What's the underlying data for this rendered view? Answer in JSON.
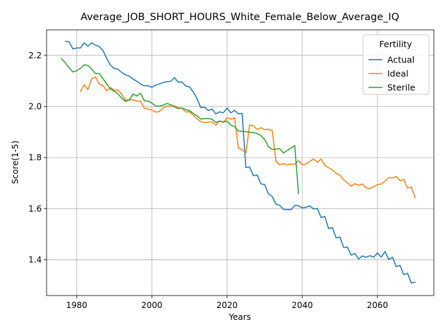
{
  "chart_data": {
    "type": "line",
    "title": "Average_JOB_SHORT_HOURS_White_Female_Below_Average_IQ",
    "xlabel": "Years",
    "ylabel": "Score(1-5)",
    "xlim": [
      1972,
      2075
    ],
    "ylim": [
      1.26,
      2.3
    ],
    "xticks": [
      1980,
      2000,
      2020,
      2040,
      2060
    ],
    "yticks": [
      1.4,
      1.6,
      1.8,
      2.0,
      2.2
    ],
    "ytick_labels": [
      "1.4",
      "1.6",
      "1.8",
      "2.0",
      "2.2"
    ],
    "grid": true,
    "legend": {
      "title": "Fertility",
      "placement": "top-right"
    },
    "series": [
      {
        "name": "Actual",
        "color": "#1f77b4",
        "x": [
          1977,
          1978,
          1979,
          1980,
          1981,
          1982,
          1983,
          1984,
          1985,
          1986,
          1987,
          1988,
          1989,
          1990,
          1991,
          1992,
          1993,
          1994,
          1995,
          1996,
          1997,
          1998,
          1999,
          2000,
          2001,
          2002,
          2003,
          2004,
          2005,
          2006,
          2007,
          2008,
          2009,
          2010,
          2011,
          2012,
          2013,
          2014,
          2015,
          2016,
          2017,
          2018,
          2019,
          2020,
          2021,
          2022,
          2023,
          2024,
          2025,
          2026,
          2027,
          2028,
          2029,
          2030,
          2031,
          2032,
          2033,
          2034,
          2035,
          2036,
          2037,
          2038,
          2039,
          2040,
          2041,
          2042,
          2043,
          2044,
          2045,
          2046,
          2047,
          2048,
          2049,
          2050,
          2051,
          2052,
          2053,
          2054,
          2055,
          2056,
          2057,
          2058,
          2059,
          2060,
          2061,
          2062,
          2063,
          2064,
          2065,
          2066,
          2067,
          2068,
          2069,
          2070
        ],
        "y": [
          2.255,
          2.253,
          2.225,
          2.229,
          2.229,
          2.249,
          2.236,
          2.249,
          2.24,
          2.235,
          2.219,
          2.188,
          2.161,
          2.149,
          2.146,
          2.133,
          2.124,
          2.119,
          2.107,
          2.099,
          2.088,
          2.081,
          2.081,
          2.075,
          2.084,
          2.088,
          2.094,
          2.097,
          2.098,
          2.113,
          2.095,
          2.096,
          2.08,
          2.077,
          2.057,
          2.031,
          1.996,
          1.997,
          1.984,
          1.99,
          1.971,
          1.979,
          1.975,
          1.994,
          1.975,
          1.985,
          1.971,
          1.973,
          1.761,
          1.763,
          1.729,
          1.732,
          1.697,
          1.694,
          1.658,
          1.648,
          1.618,
          1.613,
          1.597,
          1.596,
          1.596,
          1.613,
          1.611,
          1.603,
          1.605,
          1.611,
          1.599,
          1.601,
          1.565,
          1.57,
          1.522,
          1.526,
          1.486,
          1.489,
          1.448,
          1.45,
          1.418,
          1.424,
          1.403,
          1.415,
          1.41,
          1.416,
          1.41,
          1.427,
          1.41,
          1.432,
          1.401,
          1.41,
          1.373,
          1.378,
          1.342,
          1.347,
          1.309,
          1.312
        ]
      },
      {
        "name": "Ideal",
        "color": "#ff7f0e",
        "x": [
          1981,
          1982,
          1983,
          1984,
          1985,
          1986,
          1987,
          1988,
          1989,
          1990,
          1991,
          1992,
          1993,
          1994,
          1995,
          1996,
          1997,
          1998,
          1999,
          2000,
          2001,
          2002,
          2003,
          2004,
          2005,
          2006,
          2007,
          2008,
          2009,
          2010,
          2011,
          2012,
          2013,
          2014,
          2015,
          2016,
          2017,
          2018,
          2019,
          2020,
          2021,
          2022,
          2023,
          2024,
          2025,
          2026,
          2027,
          2028,
          2029,
          2030,
          2031,
          2032,
          2033,
          2034,
          2035,
          2036,
          2037,
          2038,
          2039,
          2040,
          2041,
          2042,
          2043,
          2044,
          2045,
          2046,
          2047,
          2048,
          2049,
          2050,
          2051,
          2052,
          2053,
          2054,
          2055,
          2056,
          2057,
          2058,
          2059,
          2060,
          2061,
          2062,
          2063,
          2064,
          2065,
          2066,
          2067,
          2068,
          2069,
          2070
        ],
        "y": [
          2.059,
          2.085,
          2.066,
          2.109,
          2.116,
          2.088,
          2.082,
          2.061,
          2.074,
          2.064,
          2.064,
          2.047,
          2.025,
          2.026,
          2.026,
          2.021,
          2.021,
          1.993,
          1.99,
          1.986,
          1.978,
          1.98,
          1.994,
          2.002,
          2.001,
          2.003,
          1.995,
          1.993,
          1.979,
          1.979,
          1.966,
          1.951,
          1.941,
          1.937,
          1.938,
          1.94,
          1.927,
          1.944,
          1.937,
          1.956,
          1.951,
          1.956,
          1.837,
          1.831,
          1.818,
          1.928,
          1.924,
          1.91,
          1.917,
          1.909,
          1.911,
          1.906,
          1.786,
          1.772,
          1.776,
          1.771,
          1.775,
          1.774,
          1.788,
          1.772,
          1.775,
          1.785,
          1.795,
          1.782,
          1.794,
          1.769,
          1.76,
          1.752,
          1.738,
          1.731,
          1.713,
          1.701,
          1.688,
          1.698,
          1.691,
          1.697,
          1.681,
          1.679,
          1.687,
          1.694,
          1.697,
          1.707,
          1.722,
          1.72,
          1.726,
          1.709,
          1.714,
          1.681,
          1.685,
          1.643
        ]
      },
      {
        "name": "Sterile",
        "color": "#2ca02c",
        "x": [
          1976,
          1977,
          1978,
          1979,
          1980,
          1981,
          1982,
          1983,
          1984,
          1985,
          1986,
          1987,
          1988,
          1989,
          1990,
          1991,
          1992,
          1993,
          1994,
          1995,
          1996,
          1997,
          1998,
          1999,
          2000,
          2001,
          2002,
          2003,
          2004,
          2005,
          2006,
          2007,
          2008,
          2009,
          2010,
          2011,
          2012,
          2013,
          2014,
          2015,
          2016,
          2017,
          2018,
          2019,
          2020,
          2021,
          2022,
          2023,
          2024,
          2025,
          2026,
          2027,
          2028,
          2029,
          2030,
          2031,
          2032,
          2033,
          2034,
          2035,
          2036,
          2037,
          2038,
          2039
        ],
        "y": [
          2.187,
          2.171,
          2.151,
          2.135,
          2.14,
          2.149,
          2.163,
          2.161,
          2.146,
          2.129,
          2.129,
          2.109,
          2.088,
          2.068,
          2.06,
          2.049,
          2.032,
          2.02,
          2.026,
          2.049,
          2.041,
          2.052,
          2.022,
          2.021,
          2.013,
          2.002,
          2.001,
          2.005,
          2.012,
          2.007,
          1.998,
          1.992,
          1.994,
          1.988,
          1.984,
          1.973,
          1.963,
          1.951,
          1.952,
          1.953,
          1.95,
          1.938,
          1.942,
          1.94,
          1.943,
          1.927,
          1.921,
          1.904,
          1.903,
          1.901,
          1.899,
          1.898,
          1.894,
          1.886,
          1.87,
          1.842,
          1.832,
          1.833,
          1.835,
          1.818,
          1.828,
          1.837,
          1.847,
          1.659
        ]
      }
    ]
  }
}
